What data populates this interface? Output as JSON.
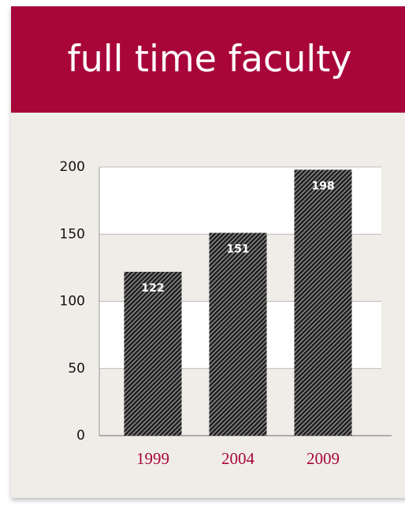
{
  "chart_data": {
    "type": "bar",
    "title": "full time faculty",
    "categories": [
      "1999",
      "2004",
      "2009"
    ],
    "values": [
      122,
      151,
      198
    ],
    "color": "#2a2a2a",
    "header_color": "#a8063a",
    "label_color": "#a8063a",
    "ylim": [
      0,
      200
    ],
    "yticks": [
      0,
      50,
      100,
      150,
      200
    ],
    "grid": true
  }
}
